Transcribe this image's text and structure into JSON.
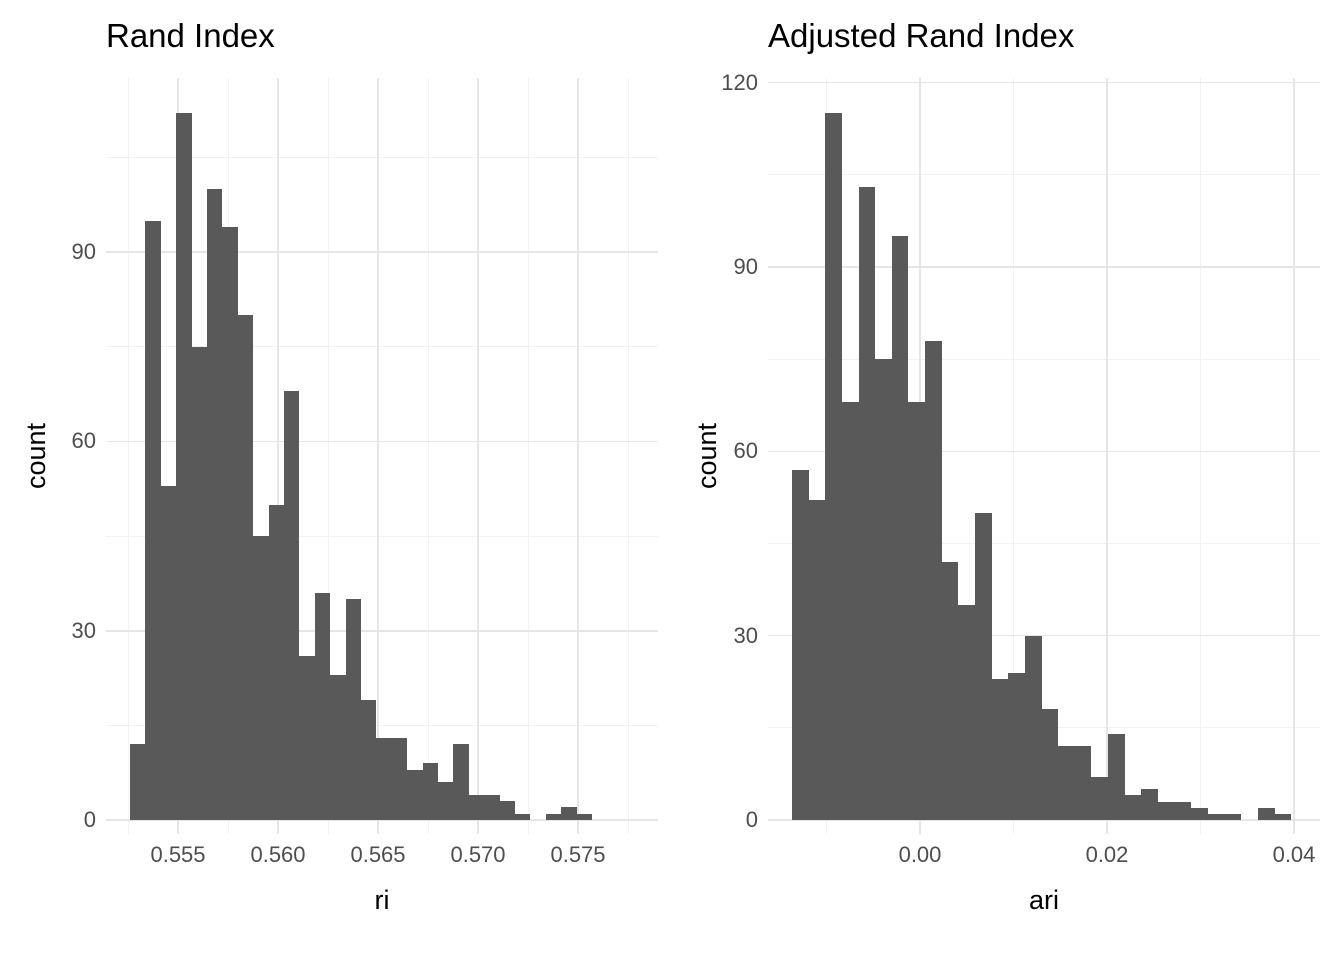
{
  "colors": {
    "background": "#ffffff",
    "bar_fill": "#595959",
    "grid_major": "#e6e6e6",
    "grid_minor": "#f2f2f2",
    "tick_label": "#4d4d4d",
    "title_text": "#000000"
  },
  "chart_data": [
    {
      "type": "bar",
      "subtype": "histogram",
      "title": "Rand Index",
      "xlabel": "ri",
      "ylabel": "count",
      "bin_start": 0.5526,
      "bin_width": 0.00077,
      "counts": [
        12,
        95,
        53,
        112,
        75,
        100,
        94,
        80,
        45,
        50,
        68,
        26,
        36,
        23,
        35,
        19,
        13,
        13,
        8,
        9,
        6,
        12,
        4,
        4,
        3,
        1,
        0,
        1,
        2,
        1
      ],
      "x_ticks": [
        {
          "v": 0.555,
          "label": "0.555"
        },
        {
          "v": 0.56,
          "label": "0.560"
        },
        {
          "v": 0.565,
          "label": "0.565"
        },
        {
          "v": 0.57,
          "label": "0.570"
        },
        {
          "v": 0.575,
          "label": "0.575"
        }
      ],
      "x_minor": [
        0.5525,
        0.5575,
        0.5625,
        0.5675,
        0.5725,
        0.5775
      ],
      "y_ticks": [
        {
          "v": 0,
          "label": "0"
        },
        {
          "v": 30,
          "label": "30"
        },
        {
          "v": 60,
          "label": "60"
        },
        {
          "v": 90,
          "label": "90"
        }
      ],
      "y_minor": [
        15,
        45,
        75,
        105
      ],
      "xlim": [
        0.5514,
        0.579
      ],
      "ylim": [
        0,
        117.6
      ],
      "grid": true,
      "legend": "none"
    },
    {
      "type": "bar",
      "subtype": "histogram",
      "title": "Adjusted Rand Index",
      "xlabel": "ari",
      "ylabel": "count",
      "bin_start": -0.0137,
      "bin_width": 0.00178,
      "counts": [
        57,
        52,
        115,
        68,
        103,
        75,
        95,
        68,
        78,
        42,
        35,
        50,
        23,
        24,
        30,
        18,
        12,
        12,
        7,
        14,
        4,
        5,
        3,
        3,
        2,
        1,
        1,
        0,
        2,
        1
      ],
      "x_ticks": [
        {
          "v": 0.0,
          "label": "0.00"
        },
        {
          "v": 0.02,
          "label": "0.02"
        },
        {
          "v": 0.04,
          "label": "0.04"
        }
      ],
      "x_minor": [
        -0.01,
        0.01,
        0.03
      ],
      "y_ticks": [
        {
          "v": 0,
          "label": "0"
        },
        {
          "v": 30,
          "label": "30"
        },
        {
          "v": 60,
          "label": "60"
        },
        {
          "v": 90,
          "label": "90"
        },
        {
          "v": 120,
          "label": "120"
        }
      ],
      "y_minor": [
        15,
        45,
        75,
        105
      ],
      "xlim": [
        -0.01626,
        0.04278
      ],
      "ylim": [
        0,
        120.75
      ],
      "grid": true,
      "legend": "none"
    }
  ]
}
